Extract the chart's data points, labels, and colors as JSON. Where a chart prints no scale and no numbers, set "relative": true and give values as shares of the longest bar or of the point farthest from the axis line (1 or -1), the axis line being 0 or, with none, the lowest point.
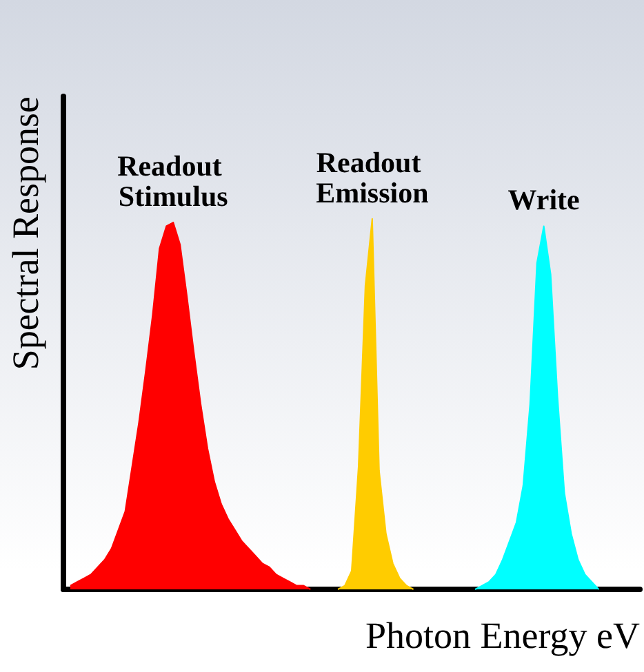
{
  "chart_data": {
    "type": "area",
    "relative": true,
    "xlabel": "Photon Energy eV",
    "ylabel": "Spectral Response",
    "grid": false,
    "legend": false,
    "categories": [
      null,
      null,
      null,
      null,
      null,
      null,
      null,
      null,
      null,
      null,
      null,
      null,
      null,
      null,
      null,
      null,
      null,
      null,
      null,
      null,
      null,
      null,
      null,
      null,
      null,
      null,
      null,
      null,
      null,
      null,
      null,
      null,
      null,
      null,
      null,
      null,
      null,
      null,
      null,
      null,
      null,
      null,
      null,
      null,
      null,
      null,
      null,
      null,
      null,
      null,
      null,
      null,
      null,
      null,
      null,
      null,
      null,
      null,
      null,
      null,
      null,
      null,
      null,
      null,
      null,
      null,
      null,
      null,
      null,
      null,
      null,
      null,
      null,
      null,
      null,
      null,
      null,
      null,
      null,
      null,
      null,
      null,
      null,
      null,
      null
    ],
    "series": [
      {
        "name": "Readout Stimulus",
        "color": "#ff0000",
        "values": [
          null,
          0.01,
          0.02,
          0.03,
          0.04,
          0.06,
          0.08,
          0.11,
          0.16,
          0.21,
          0.33,
          0.45,
          0.59,
          0.74,
          0.92,
          0.98,
          0.99,
          0.93,
          0.79,
          0.64,
          0.5,
          0.38,
          0.29,
          0.23,
          0.19,
          0.16,
          0.13,
          0.11,
          0.09,
          0.07,
          0.06,
          0.04,
          0.03,
          0.02,
          0.01,
          0.01,
          0,
          null,
          null,
          null,
          null,
          null,
          null,
          null,
          null,
          null,
          null,
          null,
          null,
          null,
          null,
          null,
          null,
          null,
          null,
          null,
          null,
          null,
          null,
          null,
          null,
          null,
          null,
          null,
          null,
          null,
          null,
          null,
          null,
          null,
          null,
          null,
          null,
          null,
          null,
          null,
          null,
          null,
          null,
          null,
          null,
          null,
          null,
          null,
          null
        ]
      },
      {
        "name": "Readout Emission",
        "color": "#ffcc00",
        "values": [
          null,
          null,
          null,
          null,
          null,
          null,
          null,
          null,
          null,
          null,
          null,
          null,
          null,
          null,
          null,
          null,
          null,
          null,
          null,
          null,
          null,
          null,
          null,
          null,
          null,
          null,
          null,
          null,
          null,
          null,
          null,
          null,
          null,
          null,
          null,
          null,
          null,
          null,
          null,
          null,
          0,
          0.01,
          0.05,
          0.33,
          0.82,
          1,
          0.32,
          0.15,
          0.07,
          0.03,
          0.01,
          0,
          null,
          null,
          null,
          null,
          null,
          null,
          null,
          null,
          null,
          null,
          null,
          null,
          null,
          null,
          null,
          null,
          null,
          null,
          null,
          null,
          null,
          null,
          null,
          null,
          null,
          null,
          null,
          null,
          null,
          null,
          null,
          null,
          null
        ]
      },
      {
        "name": "Write",
        "color": "#00ffff",
        "values": [
          null,
          null,
          null,
          null,
          null,
          null,
          null,
          null,
          null,
          null,
          null,
          null,
          null,
          null,
          null,
          null,
          null,
          null,
          null,
          null,
          null,
          null,
          null,
          null,
          null,
          null,
          null,
          null,
          null,
          null,
          null,
          null,
          null,
          null,
          null,
          null,
          null,
          null,
          null,
          null,
          null,
          null,
          null,
          null,
          null,
          null,
          null,
          null,
          null,
          null,
          null,
          null,
          null,
          null,
          null,
          null,
          null,
          null,
          null,
          null,
          0,
          0.01,
          0.02,
          0.04,
          0.08,
          0.13,
          0.18,
          0.28,
          0.5,
          0.88,
          0.98,
          0.85,
          0.52,
          0.26,
          0.15,
          0.08,
          0.04,
          0.02,
          0,
          null,
          null,
          null,
          null,
          null,
          null
        ]
      }
    ]
  }
}
